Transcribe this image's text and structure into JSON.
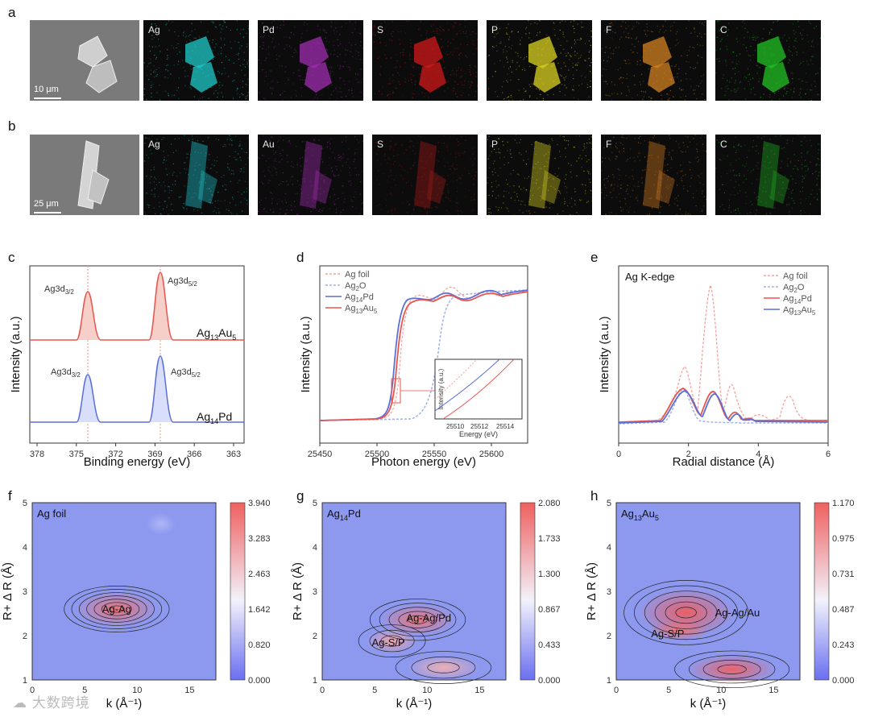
{
  "panels": {
    "a": "a",
    "b": "b",
    "c": "c",
    "d": "d",
    "e": "e",
    "f": "f",
    "g": "g",
    "h": "h"
  },
  "row_a": {
    "scale": "10 μm",
    "maps": [
      {
        "label": "Ag",
        "color": "#1fc8c8"
      },
      {
        "label": "Pd",
        "color": "#a02cb0"
      },
      {
        "label": "S",
        "color": "#d01818"
      },
      {
        "label": "P",
        "color": "#d8d020"
      },
      {
        "label": "F",
        "color": "#d08020"
      },
      {
        "label": "C",
        "color": "#22c022"
      }
    ]
  },
  "row_b": {
    "scale": "25 μm",
    "maps": [
      {
        "label": "Ag",
        "color": "#1fb8c0"
      },
      {
        "label": "Au",
        "color": "#9a2aa8"
      },
      {
        "label": "S",
        "color": "#9a1818"
      },
      {
        "label": "P",
        "color": "#c8c020"
      },
      {
        "label": "F",
        "color": "#c07020"
      },
      {
        "label": "C",
        "color": "#20a020"
      }
    ]
  },
  "panel_c": {
    "xlabel": "Binding energy (eV)",
    "ylabel": "Intensity (a.u.)",
    "xticks": [
      "378",
      "375",
      "372",
      "369",
      "366",
      "363"
    ],
    "peak_labels": [
      "Ag3d",
      "3/2",
      "Ag3d",
      "5/2"
    ],
    "sample_top": [
      "Ag",
      "13",
      "Au",
      "5"
    ],
    "sample_bottom": [
      "Ag",
      "14",
      "Pd"
    ]
  },
  "panel_d": {
    "xlabel": "Photon energy (eV)",
    "ylabel": "Intensity (a.u.)",
    "xticks": [
      "25450",
      "25500",
      "25550",
      "25600"
    ],
    "legend": [
      {
        "t": "Ag foil",
        "s": ""
      },
      {
        "t": "Ag",
        "s": "2",
        "t2": "O"
      },
      {
        "t": "Ag",
        "s": "14",
        "t2": "Pd"
      },
      {
        "t": "Ag",
        "s": "13",
        "t2": "Au",
        "s2": "5"
      }
    ],
    "inset": {
      "xlabel": "Energy (eV)",
      "ylabel": "Intensity (a.u.)",
      "xticks": [
        "25510",
        "25512",
        "25514"
      ]
    }
  },
  "panel_e": {
    "title": "Ag K-edge",
    "xlabel": "Radial distance (Å)",
    "ylabel": "Intensity (a.u.)",
    "xticks": [
      "0",
      "2",
      "4",
      "6"
    ],
    "legend": [
      {
        "t": "Ag foil"
      },
      {
        "t": "Ag",
        "s": "2",
        "t2": "O"
      },
      {
        "t": "Ag",
        "s": "14",
        "t2": "Pd"
      },
      {
        "t": "Ag",
        "s": "13",
        "t2": "Au",
        "s2": "5"
      }
    ]
  },
  "panel_f": {
    "title": "Ag foil",
    "region": "Ag-Ag",
    "ylabel": "R+ Δ R (Å)",
    "xlabel": "k (Å⁻¹)",
    "xticks": [
      "0",
      "5",
      "10",
      "15"
    ],
    "yticks": [
      "1",
      "2",
      "3",
      "4",
      "5"
    ],
    "colorbar": [
      "3.940",
      "3.283",
      "2.463",
      "1.642",
      "0.820",
      "0.000"
    ]
  },
  "panel_g": {
    "title": [
      "Ag",
      "14",
      "Pd"
    ],
    "regions": [
      "Ag-Ag/Pd",
      "Ag-S/P"
    ],
    "ylabel": "R+ Δ R (Å)",
    "xlabel": "k (Å⁻¹)",
    "xticks": [
      "0",
      "5",
      "10",
      "15"
    ],
    "yticks": [
      "1",
      "2",
      "3",
      "4",
      "5"
    ],
    "colorbar": [
      "2.080",
      "1.733",
      "1.300",
      "0.867",
      "0.433",
      "0.000"
    ]
  },
  "panel_h": {
    "title": [
      "Ag",
      "13",
      "Au",
      "5"
    ],
    "regions": [
      "Ag-Ag/Au",
      "Ag-S/P"
    ],
    "ylabel": "R+ Δ R (Å)",
    "xlabel": "k (Å⁻¹)",
    "xticks": [
      "0",
      "5",
      "10",
      "15"
    ],
    "yticks": [
      "1",
      "2",
      "3",
      "4",
      "5"
    ],
    "colorbar": [
      "1.170",
      "0.975",
      "0.731",
      "0.487",
      "0.243",
      "0.000"
    ]
  },
  "watermark": "大数跨境",
  "colors": {
    "red": "#e8554e",
    "blue": "#5a6fd8",
    "red_light": "#f3a29b",
    "blue_light": "#9fb0ee"
  }
}
